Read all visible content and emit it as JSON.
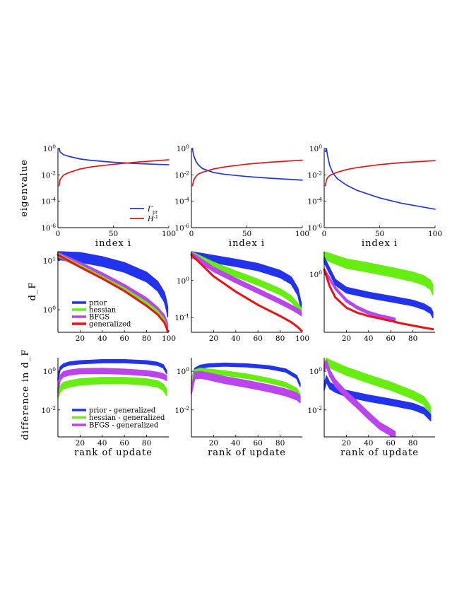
{
  "figure": {
    "row_labels": {
      "eigenvalue": "eigenvalue",
      "dF": "d_F",
      "diff": "difference in d_F"
    }
  },
  "chart_data": [
    {
      "type": "line",
      "scale": "log",
      "title": "",
      "xlabel": "index i",
      "ylabel": "eigenvalue",
      "xlim": [
        0,
        100
      ],
      "ylim": [
        1e-06,
        1
      ],
      "xticks": [
        "0",
        "50",
        "100"
      ],
      "yticks": [
        {
          "base": "10",
          "exp": "0"
        },
        {
          "base": "10",
          "exp": "-2"
        },
        {
          "base": "10",
          "exp": "-4"
        },
        {
          "base": "10",
          "exp": "-6"
        }
      ],
      "legend": {
        "position": "bottom-right",
        "entries": [
          {
            "name": "Γ_pr",
            "base": "Γ",
            "sub": "pr",
            "sup": ""
          },
          {
            "name": "H^-1",
            "base": "H",
            "sub": "",
            "sup": "-1"
          }
        ]
      },
      "series": [
        {
          "name": "Γ_pr",
          "color": "#2233ee",
          "x": [
            1,
            2,
            5,
            10,
            20,
            30,
            50,
            70,
            100
          ],
          "y": [
            1.0,
            0.55,
            0.34,
            0.25,
            0.16,
            0.125,
            0.09,
            0.072,
            0.058
          ]
        },
        {
          "name": "H^-1",
          "color": "#ee1111",
          "x": [
            1,
            2,
            5,
            10,
            20,
            30,
            50,
            70,
            100
          ],
          "y": [
            0.0015,
            0.0045,
            0.0095,
            0.015,
            0.028,
            0.04,
            0.063,
            0.09,
            0.14
          ]
        }
      ]
    },
    {
      "type": "line",
      "scale": "log",
      "title": "",
      "xlabel": "index i",
      "ylabel": "",
      "xlim": [
        0,
        100
      ],
      "ylim": [
        1e-06,
        1
      ],
      "xticks": [
        "0",
        "50",
        "100"
      ],
      "yticks": [
        {
          "base": "10",
          "exp": "0"
        },
        {
          "base": "10",
          "exp": "-2"
        },
        {
          "base": "10",
          "exp": "-4"
        },
        {
          "base": "10",
          "exp": "-6"
        }
      ],
      "series": [
        {
          "name": "Γ_pr",
          "color": "#2233ee",
          "x": [
            1,
            2,
            4,
            6,
            10,
            20,
            30,
            50,
            70,
            100
          ],
          "y": [
            0.9,
            0.3,
            0.11,
            0.06,
            0.03,
            0.015,
            0.011,
            0.0075,
            0.0056,
            0.004
          ]
        },
        {
          "name": "H^-1",
          "color": "#ee1111",
          "x": [
            1,
            2,
            4,
            6,
            10,
            20,
            30,
            50,
            70,
            100
          ],
          "y": [
            0.0015,
            0.004,
            0.0075,
            0.011,
            0.016,
            0.028,
            0.04,
            0.065,
            0.09,
            0.13
          ]
        }
      ]
    },
    {
      "type": "line",
      "scale": "log",
      "title": "",
      "xlabel": "index i",
      "ylabel": "",
      "xlim": [
        0,
        100
      ],
      "ylim": [
        1e-06,
        1
      ],
      "xticks": [
        "0",
        "50",
        "100"
      ],
      "yticks": [
        {
          "base": "10",
          "exp": "0"
        },
        {
          "base": "10",
          "exp": "-2"
        },
        {
          "base": "10",
          "exp": "-4"
        },
        {
          "base": "10",
          "exp": "-6"
        }
      ],
      "series": [
        {
          "name": "Γ_pr",
          "color": "#2233ee",
          "x": [
            1,
            2,
            3,
            5,
            8,
            12,
            20,
            30,
            50,
            70,
            100
          ],
          "y": [
            0.6,
            1.0,
            0.3,
            0.05,
            0.013,
            0.005,
            0.0017,
            0.00065,
            0.00018,
            7e-05,
            2.5e-05
          ]
        },
        {
          "name": "H^-1",
          "color": "#ee1111",
          "x": [
            1,
            2,
            3,
            5,
            8,
            12,
            20,
            30,
            50,
            70,
            100
          ],
          "y": [
            0.0015,
            0.004,
            0.006,
            0.009,
            0.012,
            0.016,
            0.025,
            0.036,
            0.06,
            0.085,
            0.12
          ]
        }
      ]
    },
    {
      "type": "line",
      "scale": "log",
      "title": "",
      "xlabel": "",
      "ylabel": "d_F",
      "xlim": [
        0,
        100
      ],
      "ylim": [
        0.35,
        15
      ],
      "xticks": [
        "20",
        "40",
        "60",
        "80",
        "100"
      ],
      "yticks": [
        {
          "base": "10",
          "exp": "1"
        },
        {
          "base": "10",
          "exp": "0"
        }
      ],
      "legend": {
        "position": "bottom-left",
        "entries": [
          {
            "name": "prior"
          },
          {
            "name": "hessian"
          },
          {
            "name": "BFGS"
          },
          {
            "name": "generalized"
          }
        ]
      },
      "series": [
        {
          "name": "prior",
          "color": "#2233ee",
          "band": 1.25,
          "x": [
            0,
            20,
            40,
            60,
            80,
            90,
            96,
            98,
            99
          ],
          "y": [
            13,
            11.5,
            9.5,
            7.2,
            4.6,
            3.0,
            1.8,
            1.2,
            0.9
          ]
        },
        {
          "name": "BFGS",
          "color": "#bb44ee",
          "band": 1.12,
          "x": [
            0,
            20,
            40,
            60,
            80,
            90,
            96,
            98,
            99
          ],
          "y": [
            13,
            8.2,
            5.0,
            2.9,
            1.55,
            1.0,
            0.7,
            0.55,
            0.45
          ]
        },
        {
          "name": "hessian",
          "color": "#66ee11",
          "band": 1.06,
          "x": [
            0,
            20,
            40,
            60,
            80,
            90,
            96,
            98,
            99
          ],
          "y": [
            13,
            7.6,
            4.5,
            2.6,
            1.35,
            0.9,
            0.6,
            0.45,
            0.38
          ]
        },
        {
          "name": "generalized",
          "color": "#ee1111",
          "band": 1.0,
          "x": [
            0,
            20,
            40,
            60,
            80,
            90,
            96,
            98,
            99
          ],
          "y": [
            13,
            7.3,
            4.3,
            2.4,
            1.2,
            0.8,
            0.55,
            0.43,
            0.36
          ]
        }
      ]
    },
    {
      "type": "line",
      "scale": "log",
      "title": "",
      "xlabel": "",
      "ylabel": "",
      "xlim": [
        0,
        100
      ],
      "ylim": [
        0.04,
        6
      ],
      "xticks": [
        "20",
        "40",
        "60",
        "80",
        "100"
      ],
      "yticks": [
        {
          "base": "10",
          "exp": "0"
        },
        {
          "base": "10",
          "exp": "-1"
        }
      ],
      "series": [
        {
          "name": "prior",
          "color": "#2233ee",
          "band": 1.25,
          "x": [
            0,
            20,
            40,
            60,
            80,
            90,
            96,
            99
          ],
          "y": [
            5,
            3.8,
            3.0,
            2.3,
            1.5,
            1.0,
            0.5,
            0.2
          ]
        },
        {
          "name": "hessian",
          "color": "#66ee11",
          "band": 1.2,
          "x": [
            0,
            20,
            40,
            60,
            80,
            90,
            96,
            99
          ],
          "y": [
            5,
            2.6,
            1.5,
            0.9,
            0.5,
            0.32,
            0.2,
            0.15
          ]
        },
        {
          "name": "BFGS",
          "color": "#bb44ee",
          "band": 1.15,
          "x": [
            0,
            20,
            40,
            60,
            80,
            90,
            96,
            99
          ],
          "y": [
            5,
            2.0,
            1.0,
            0.52,
            0.27,
            0.19,
            0.15,
            0.13
          ]
        },
        {
          "name": "generalized",
          "color": "#ee1111",
          "band": 1.0,
          "x": [
            0,
            20,
            40,
            60,
            80,
            90,
            96,
            99
          ],
          "y": [
            5,
            1.3,
            0.5,
            0.22,
            0.11,
            0.075,
            0.055,
            0.045
          ]
        }
      ]
    },
    {
      "type": "line",
      "scale": "log",
      "title": "",
      "xlabel": "",
      "ylabel": "",
      "xlim": [
        0,
        100
      ],
      "ylim": [
        0.3,
        1.6
      ],
      "xticks": [
        "20",
        "40",
        "60",
        "80"
      ],
      "yticks": [
        {
          "base": "10",
          "exp": "0"
        }
      ],
      "series": [
        {
          "name": "hessian",
          "color": "#66ee11",
          "band": 1.1,
          "x": [
            0,
            20,
            40,
            60,
            80,
            90,
            96,
            98
          ],
          "y": [
            1.5,
            1.25,
            1.15,
            1.05,
            0.95,
            0.88,
            0.8,
            0.72
          ]
        },
        {
          "name": "prior",
          "color": "#2233ee",
          "band": 1.06,
          "x": [
            0,
            10,
            20,
            40,
            60,
            80,
            90,
            96,
            98
          ],
          "y": [
            1.35,
            0.85,
            0.72,
            0.65,
            0.6,
            0.55,
            0.51,
            0.47,
            0.43
          ]
        },
        {
          "name": "BFGS",
          "color": "#bb44ee",
          "band": 1.03,
          "x": [
            0,
            10,
            20,
            30,
            40,
            50,
            60,
            64
          ],
          "y": [
            1.1,
            0.75,
            0.58,
            0.5,
            0.45,
            0.42,
            0.4,
            0.39
          ]
        },
        {
          "name": "generalized",
          "color": "#ee1111",
          "band": 1.0,
          "x": [
            0,
            5,
            10,
            20,
            30,
            40,
            50,
            60,
            70,
            80,
            90,
            98
          ],
          "y": [
            1.1,
            0.78,
            0.62,
            0.5,
            0.45,
            0.42,
            0.4,
            0.38,
            0.36,
            0.345,
            0.33,
            0.32
          ]
        }
      ]
    },
    {
      "type": "line",
      "scale": "log",
      "title": "",
      "xlabel": "rank of update",
      "ylabel": "difference in d_F",
      "xlim": [
        0,
        100
      ],
      "ylim": [
        0.0004,
        5
      ],
      "xticks": [
        "20",
        "40",
        "60",
        "80"
      ],
      "yticks": [
        {
          "base": "10",
          "exp": "0"
        },
        {
          "base": "10",
          "exp": "-2"
        }
      ],
      "legend": {
        "position": "bottom-left",
        "entries": [
          {
            "name": "prior - generalized"
          },
          {
            "name": "hessian - generalized"
          },
          {
            "name": "BFGS - generalized"
          }
        ]
      },
      "series": [
        {
          "name": "prior - generalized",
          "color": "#2233ee",
          "band": 1.2,
          "x": [
            0,
            2,
            5,
            10,
            20,
            40,
            60,
            80,
            90,
            95,
            98
          ],
          "y": [
            0.4,
            1.4,
            2.0,
            2.5,
            2.9,
            3.3,
            3.3,
            2.9,
            2.4,
            1.8,
            0.9
          ]
        },
        {
          "name": "hessian - generalized",
          "color": "#66ee11",
          "band": 1.45,
          "x": [
            0,
            2,
            5,
            10,
            20,
            40,
            60,
            80,
            90,
            95,
            98
          ],
          "y": [
            0.06,
            0.12,
            0.18,
            0.22,
            0.28,
            0.33,
            0.33,
            0.28,
            0.22,
            0.15,
            0.08
          ]
        },
        {
          "name": "BFGS - generalized",
          "color": "#bb44ee",
          "band": 1.35,
          "x": [
            0,
            2,
            5,
            10,
            20,
            40,
            60,
            80,
            90,
            95,
            98
          ],
          "y": [
            0.1,
            0.45,
            0.7,
            0.85,
            1.0,
            1.05,
            0.95,
            0.8,
            0.65,
            0.55,
            0.45
          ]
        }
      ]
    },
    {
      "type": "line",
      "scale": "log",
      "title": "",
      "xlabel": "rank of update",
      "ylabel": "",
      "xlim": [
        0,
        100
      ],
      "ylim": [
        0.0004,
        5
      ],
      "xticks": [
        "20",
        "40",
        "60",
        "80"
      ],
      "yticks": [
        {
          "base": "10",
          "exp": "0"
        },
        {
          "base": "10",
          "exp": "-2"
        }
      ],
      "series": [
        {
          "name": "prior - generalized",
          "color": "#2233ee",
          "band": 1.2,
          "x": [
            0,
            3,
            8,
            15,
            30,
            50,
            70,
            85,
            95,
            98
          ],
          "y": [
            0.3,
            1.2,
            1.7,
            2.0,
            2.2,
            2.0,
            1.6,
            1.1,
            0.5,
            0.2
          ]
        },
        {
          "name": "hessian - generalized",
          "color": "#66ee11",
          "band": 1.3,
          "x": [
            0,
            3,
            8,
            15,
            30,
            50,
            70,
            85,
            95,
            98
          ],
          "y": [
            0.3,
            0.9,
            1.1,
            1.0,
            0.8,
            0.55,
            0.33,
            0.2,
            0.1,
            0.05
          ]
        },
        {
          "name": "BFGS - generalized",
          "color": "#bb44ee",
          "band": 1.5,
          "x": [
            0,
            3,
            8,
            15,
            30,
            50,
            70,
            85,
            95,
            98
          ],
          "y": [
            0.1,
            0.6,
            0.65,
            0.55,
            0.35,
            0.22,
            0.13,
            0.08,
            0.05,
            0.035
          ]
        }
      ]
    },
    {
      "type": "line",
      "scale": "log",
      "title": "",
      "xlabel": "rank of update",
      "ylabel": "",
      "xlim": [
        0,
        100
      ],
      "ylim": [
        0.0004,
        5
      ],
      "xticks": [
        "20",
        "40",
        "60",
        "80"
      ],
      "yticks": [
        {
          "base": "10",
          "exp": "0"
        },
        {
          "base": "10",
          "exp": "-2"
        }
      ],
      "series": [
        {
          "name": "hessian - generalized",
          "color": "#66ee11",
          "band": 1.6,
          "x": [
            0,
            2,
            5,
            10,
            20,
            40,
            60,
            80,
            90,
            96
          ],
          "y": [
            1.5,
            3.0,
            2.4,
            1.8,
            1.0,
            0.4,
            0.17,
            0.06,
            0.03,
            0.009
          ]
        },
        {
          "name": "prior - generalized",
          "color": "#2233ee",
          "band": 1.45,
          "x": [
            0,
            2,
            5,
            10,
            20,
            40,
            60,
            80,
            90,
            96
          ],
          "y": [
            0.15,
            0.4,
            0.18,
            0.12,
            0.07,
            0.04,
            0.025,
            0.015,
            0.009,
            0.004
          ]
        },
        {
          "name": "BFGS - generalized",
          "color": "#bb44ee",
          "band": 1.5,
          "x": [
            0,
            2,
            5,
            10,
            20,
            30,
            40,
            50,
            60,
            64
          ],
          "y": [
            1.5,
            2.5,
            0.8,
            0.25,
            0.06,
            0.018,
            0.005,
            0.0015,
            0.0007,
            0.0005
          ]
        }
      ]
    }
  ]
}
